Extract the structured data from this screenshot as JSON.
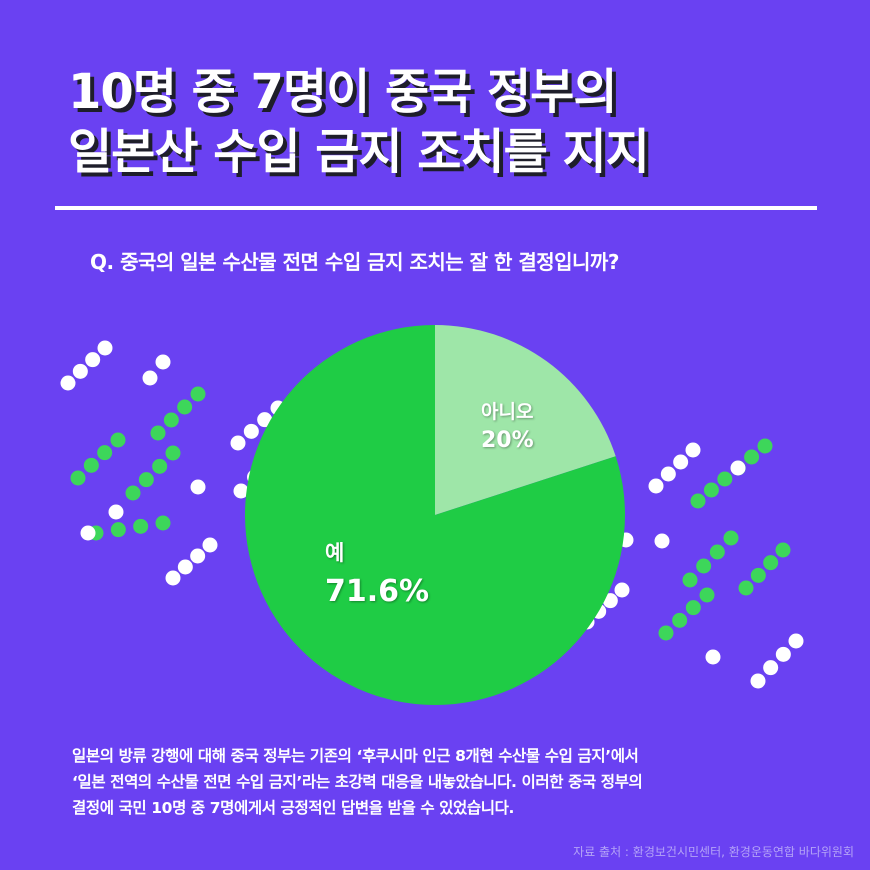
{
  "headline": {
    "line1": "10명 중 7명이 중국 정부의",
    "line2": "일본산 수입 금지 조치를 지지"
  },
  "question": "Q. 중국의 일본 수산물 전면 수입 금지 조치는 잘 한 결정입니까?",
  "chart_data": {
    "type": "pie",
    "slices": [
      {
        "category": "아니오",
        "label": "20%",
        "value": 20,
        "color": "#9ee6a8"
      },
      {
        "category": "예",
        "label": "71.6%",
        "value": 71.6,
        "color": "#1fcc45"
      }
    ],
    "unlabeled_remainder": 8.4
  },
  "body": {
    "line1": "일본의 방류 강행에 대해 중국 정부는 기존의 ‘후쿠시마 인근 8개현 수산물 수입 금지’에서",
    "line2": "‘일본 전역의 수산물 전면 수입 금지’라는 초강력 대응을 내놓았습니다. 이러한 중국 정부의",
    "line3": "결정에 국민 10명 중 7명에게서 긍정적인 답변을 받을 수 있었습니다."
  },
  "source": "자료 출처 : 환경보건시민센터, 환경운동연합 바다위원회",
  "colors": {
    "background": "#6a41f2",
    "dot_white": "#ffffff",
    "dot_green": "#3dd65a",
    "yes": "#1fcc45",
    "no": "#9ee6a8"
  }
}
